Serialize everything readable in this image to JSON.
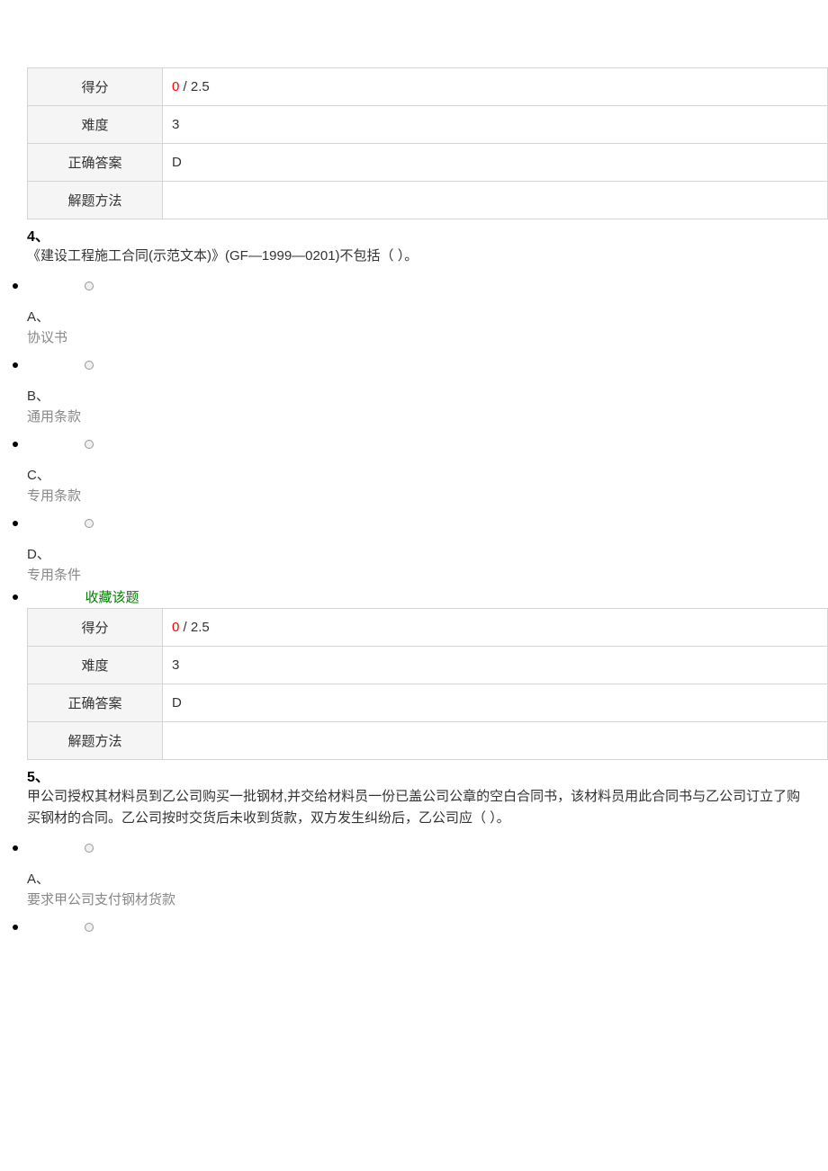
{
  "table3": {
    "rows": [
      {
        "label": "得分",
        "value_red": "0",
        "value_rest": " / 2.5"
      },
      {
        "label": "难度",
        "value": "3"
      },
      {
        "label": "正确答案",
        "value": "D"
      },
      {
        "label": "解题方法",
        "value": ""
      }
    ]
  },
  "q4": {
    "number": "4、",
    "text": "《建设工程施工合同(示范文本)》(GF—1999—0201)不包括（ ）。",
    "options": [
      {
        "letter": "A、",
        "text": "协议书"
      },
      {
        "letter": "B、",
        "text": "通用条款"
      },
      {
        "letter": "C、",
        "text": "专用条款"
      },
      {
        "letter": "D、",
        "text": "专用条件"
      }
    ],
    "favorite": "收藏该题"
  },
  "table4": {
    "rows": [
      {
        "label": "得分",
        "value_red": "0",
        "value_rest": " / 2.5"
      },
      {
        "label": "难度",
        "value": "3"
      },
      {
        "label": "正确答案",
        "value": "D"
      },
      {
        "label": "解题方法",
        "value": ""
      }
    ]
  },
  "q5": {
    "number": "5、",
    "text": "甲公司授权其材料员到乙公司购买一批钢材,并交给材料员一份已盖公司公章的空白合同书，该材料员用此合同书与乙公司订立了购买钢材的合同。乙公司按时交货后未收到货款，双方发生纠纷后，乙公司应（ ）。",
    "options": [
      {
        "letter": "A、",
        "text": "要求甲公司支付钢材货款"
      }
    ]
  }
}
